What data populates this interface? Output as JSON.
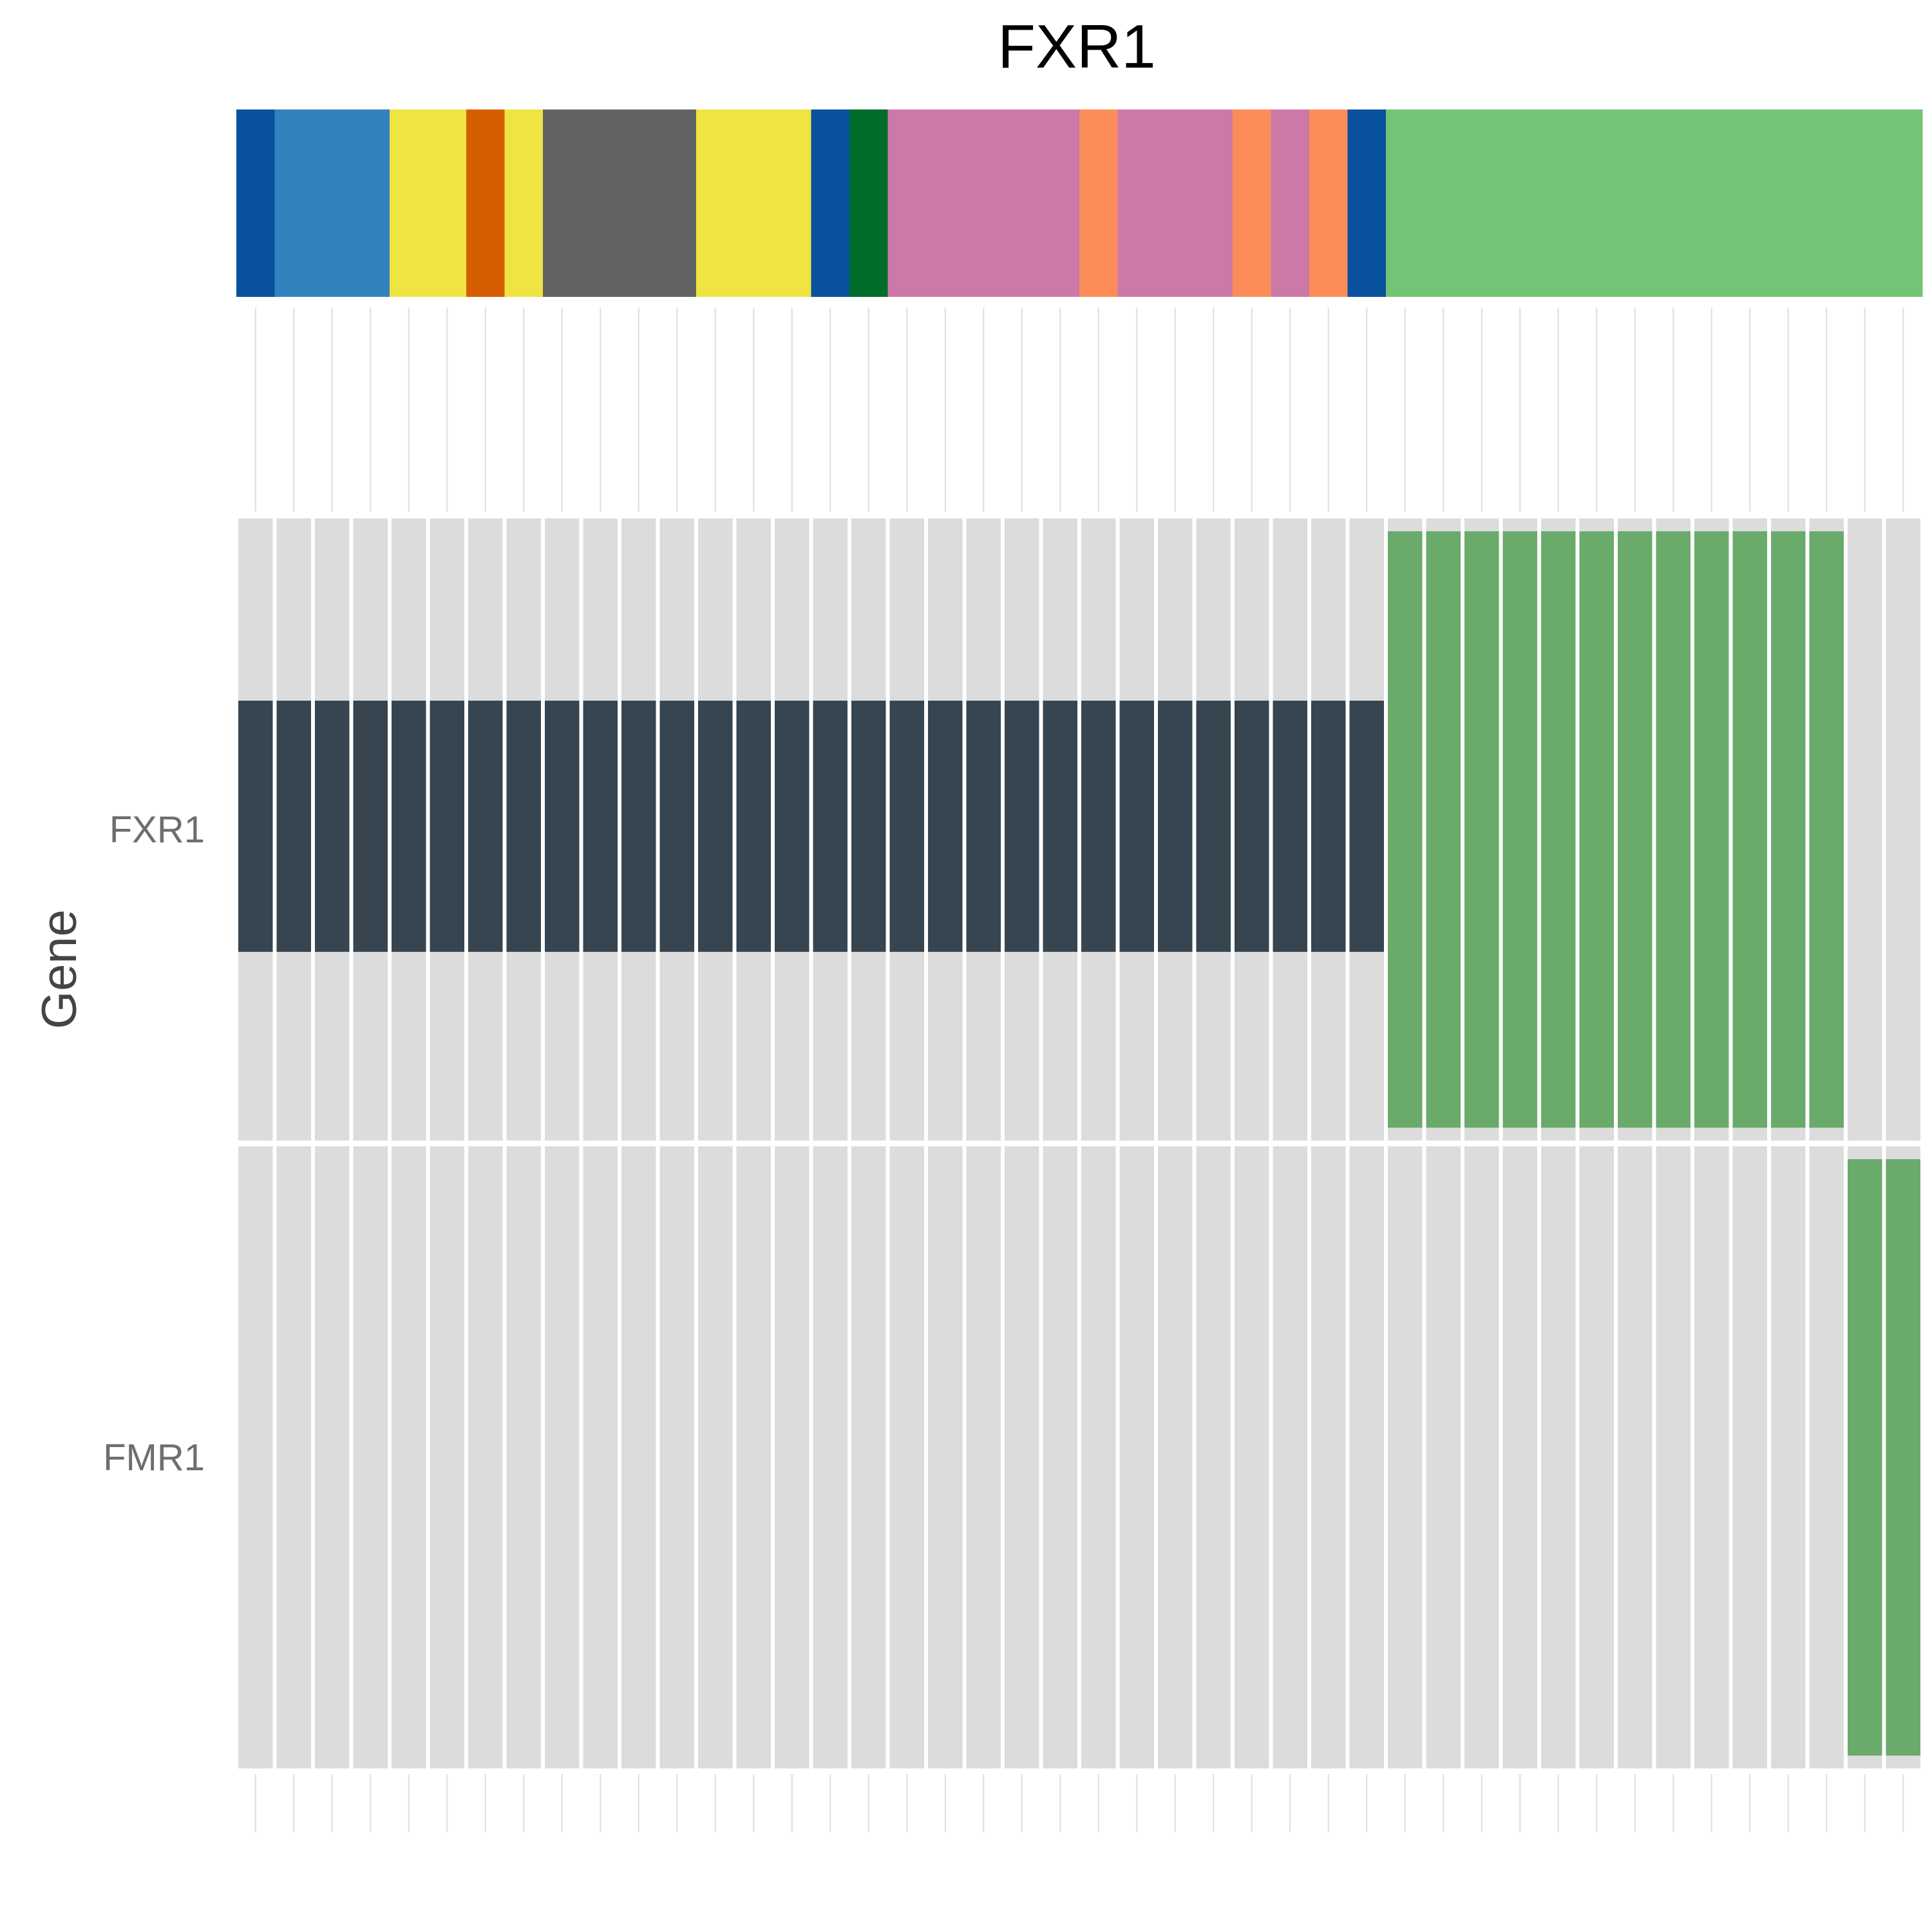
{
  "chart_data": {
    "type": "heatmap",
    "title": "FXR1",
    "xlabel": "",
    "ylabel": "Gene",
    "rows": [
      "FXR1",
      "FMR1"
    ],
    "n_samples": 44,
    "background_color": "#dcdcdc",
    "category_colors": {
      "dark_blue": "#08519c",
      "blue": "#3182bd",
      "yellow": "#f0e442",
      "dark_orange": "#d55e00",
      "gray": "#636363",
      "dark_green": "#006d2c",
      "pink": "#cc79a7",
      "orange": "#fc8d59",
      "green": "#74c476"
    },
    "annotation_bar": [
      "dark_blue",
      "blue",
      "blue",
      "blue",
      "yellow",
      "yellow",
      "dark_orange",
      "yellow",
      "gray",
      "gray",
      "gray",
      "gray",
      "yellow",
      "yellow",
      "yellow",
      "dark_blue",
      "dark_green",
      "pink",
      "pink",
      "pink",
      "pink",
      "pink",
      "orange",
      "pink",
      "pink",
      "pink",
      "orange",
      "pink",
      "orange",
      "dark_blue",
      "green",
      "green",
      "green",
      "green",
      "green",
      "green",
      "green",
      "green",
      "green",
      "green",
      "green",
      "green",
      "green",
      "green"
    ],
    "alteration_colors": {
      "amplification": "#36454f",
      "green_alteration": "#6aaa6a"
    },
    "alterations": {
      "FXR1": {
        "amplification": [
          0,
          1,
          2,
          3,
          4,
          5,
          6,
          7,
          8,
          9,
          10,
          11,
          12,
          13,
          14,
          15,
          16,
          17,
          18,
          19,
          20,
          21,
          22,
          23,
          24,
          25,
          26,
          27,
          28,
          29
        ],
        "green_alteration": [
          30,
          31,
          32,
          33,
          34,
          35,
          36,
          37,
          38,
          39,
          40,
          41
        ]
      },
      "FMR1": {
        "amplification": [],
        "green_alteration": [
          42,
          43
        ]
      }
    }
  }
}
